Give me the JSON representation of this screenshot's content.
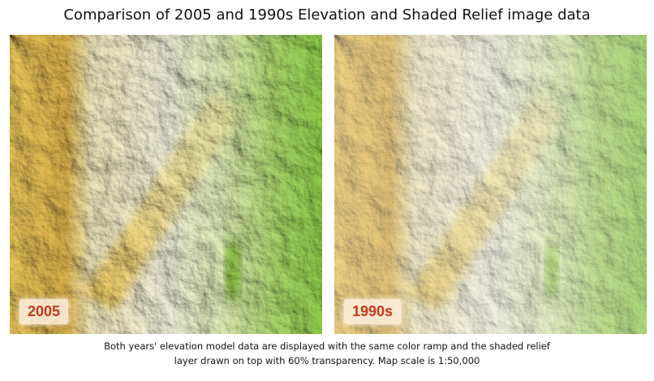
{
  "header": {
    "title": "Comparison of 2005 and 1990s Elevation and Shaded Relief image data"
  },
  "panels": [
    {
      "label": "2005"
    },
    {
      "label": "1990s"
    }
  ],
  "caption": {
    "lines": [
      "Both years' elevation model data are displayed with the same color ramp and the shaded relief",
      "layer drawn on top with 60% transparency. Map scale is 1:50,000"
    ]
  }
}
